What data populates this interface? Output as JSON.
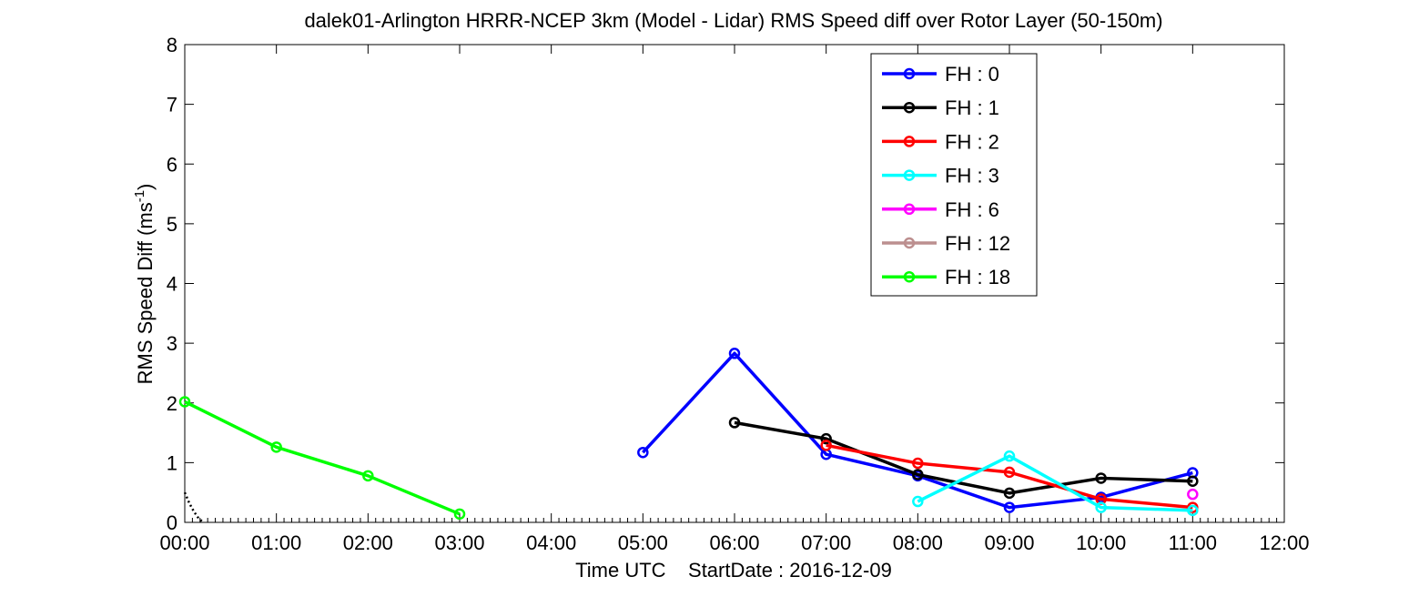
{
  "chart_data": {
    "type": "line",
    "title": "dalek01-Arlington HRRR-NCEP 3km (Model - Lidar) RMS Speed diff over Rotor Layer (50-150m)",
    "xlabel": "Time UTC    StartDate : 2016-12-09",
    "ylabel": {
      "main": "RMS Speed Diff (ms",
      "sup": "-1",
      "end": ")"
    },
    "xlim": [
      0,
      12
    ],
    "ylim": [
      0,
      8
    ],
    "x_tick_labels": [
      "00:00",
      "01:00",
      "02:00",
      "03:00",
      "04:00",
      "05:00",
      "06:00",
      "07:00",
      "08:00",
      "09:00",
      "10:00",
      "11:00",
      "12:00"
    ],
    "y_tick_labels": [
      "0",
      "1",
      "2",
      "3",
      "4",
      "5",
      "6",
      "7",
      "8"
    ],
    "grid": false,
    "legend_position": "top-right",
    "series": [
      {
        "name": "FH : 0",
        "color": "#0000ff",
        "x": [
          5,
          6,
          7,
          8,
          9,
          10,
          11
        ],
        "y": [
          1.17,
          2.83,
          1.14,
          0.78,
          0.25,
          0.42,
          0.83
        ]
      },
      {
        "name": "FH : 1",
        "color": "#000000",
        "x": [
          6,
          7,
          8,
          9,
          10,
          11
        ],
        "y": [
          1.67,
          1.4,
          0.8,
          0.49,
          0.74,
          0.69
        ]
      },
      {
        "name": "FH : 2",
        "color": "#ff0000",
        "x": [
          7,
          8,
          9,
          10,
          11
        ],
        "y": [
          1.29,
          0.99,
          0.84,
          0.39,
          0.25
        ]
      },
      {
        "name": "FH : 3",
        "color": "#00ffff",
        "x": [
          8,
          9,
          10,
          11
        ],
        "y": [
          0.35,
          1.11,
          0.25,
          0.2
        ]
      },
      {
        "name": "FH : 6",
        "color": "#ff00ff",
        "x": [
          11
        ],
        "y": [
          0.47
        ]
      },
      {
        "name": "FH : 12",
        "color": "#bc8f8f",
        "x": [],
        "y": []
      },
      {
        "name": "FH : 18",
        "color": "#00ff00",
        "x": [
          0,
          1,
          2,
          3
        ],
        "y": [
          2.02,
          1.26,
          0.78,
          0.14
        ]
      }
    ],
    "dotted_trace": {
      "color": "#000000",
      "x": [
        0,
        0.05,
        0.1,
        0.15,
        0.2
      ],
      "y": [
        0.5,
        0.32,
        0.18,
        0.07,
        0.0
      ]
    }
  }
}
